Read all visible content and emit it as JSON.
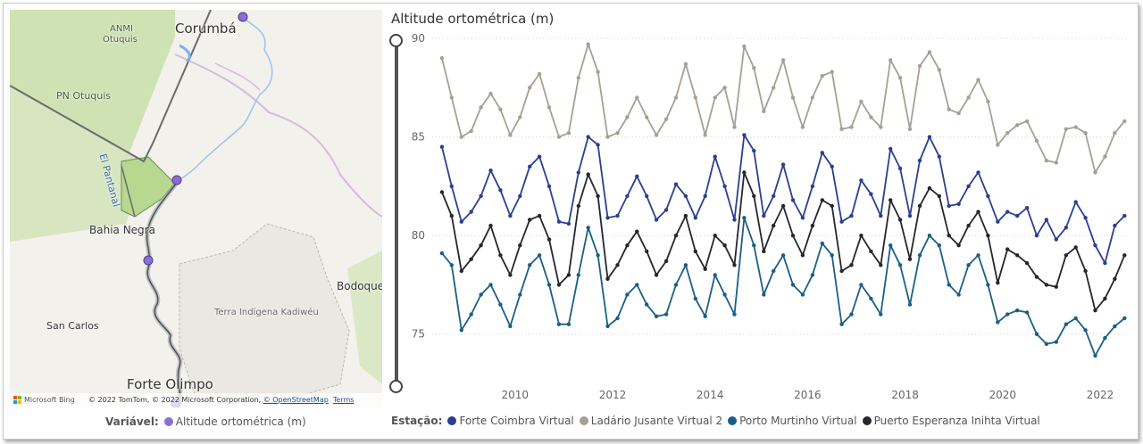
{
  "map": {
    "labels": {
      "corumba": "Corumbá",
      "anmi": "ANMI",
      "otuquis": "Otuquis",
      "pn_otuquis": "PN Otuquis",
      "el_pantanal": "El Pantanal",
      "bahia_negra": "Bahia Negra",
      "bodoquena": "Bodoque",
      "terra_indigena": "Terra Indígena Kadiwéu",
      "san_carlos": "San Carlos",
      "forte_olimpo": "Forte Olimpo"
    },
    "attribution": {
      "bing": "Microsoft Bing",
      "copyright": "© 2022 TomTom, © 2022 Microsoft Corporation, ",
      "osm": "© OpenStreetMap",
      "terms": "Terms"
    },
    "point_color": "#8a6fd1",
    "legend": {
      "title": "Variável:",
      "item": "Altitude ortométrica (m)"
    }
  },
  "chart_title": "Altitude ortométrica (m)",
  "legend_title": "Estação:",
  "chart_data": {
    "type": "line",
    "title": "Altitude ortométrica (m)",
    "xlabel": "",
    "ylabel": "",
    "xlim": [
      2008.3,
      2022.55
    ],
    "ylim": [
      72.5,
      90.5
    ],
    "x_ticks": [
      "2010",
      "2012",
      "2014",
      "2016",
      "2018",
      "2020",
      "2022"
    ],
    "y_ticks": [
      "75",
      "80",
      "85",
      "90"
    ],
    "grid": "horizontal-dotted",
    "legend_position": "bottom",
    "series": [
      {
        "name": "Forte Coimbra Virtual",
        "color": "#2b3f8f",
        "points": [
          [
            2008.5,
            84.5
          ],
          [
            2008.7,
            82.5
          ],
          [
            2008.9,
            80.7
          ],
          [
            2009.1,
            81.2
          ],
          [
            2009.3,
            82.0
          ],
          [
            2009.5,
            83.3
          ],
          [
            2009.7,
            82.3
          ],
          [
            2009.9,
            81.0
          ],
          [
            2010.1,
            82.0
          ],
          [
            2010.3,
            83.5
          ],
          [
            2010.5,
            84.0
          ],
          [
            2010.7,
            82.5
          ],
          [
            2010.9,
            80.7
          ],
          [
            2011.1,
            80.6
          ],
          [
            2011.3,
            83.2
          ],
          [
            2011.5,
            85.0
          ],
          [
            2011.7,
            84.6
          ],
          [
            2011.9,
            80.9
          ],
          [
            2012.1,
            81.0
          ],
          [
            2012.3,
            82.0
          ],
          [
            2012.5,
            83.0
          ],
          [
            2012.7,
            82.0
          ],
          [
            2012.9,
            80.8
          ],
          [
            2013.1,
            81.3
          ],
          [
            2013.3,
            82.6
          ],
          [
            2013.5,
            82.0
          ],
          [
            2013.7,
            80.9
          ],
          [
            2013.9,
            82.0
          ],
          [
            2014.1,
            84.0
          ],
          [
            2014.3,
            82.5
          ],
          [
            2014.5,
            80.8
          ],
          [
            2014.7,
            85.1
          ],
          [
            2014.9,
            84.3
          ],
          [
            2015.1,
            81.0
          ],
          [
            2015.3,
            82.0
          ],
          [
            2015.5,
            83.6
          ],
          [
            2015.7,
            81.8
          ],
          [
            2015.9,
            80.9
          ],
          [
            2016.1,
            82.5
          ],
          [
            2016.3,
            84.2
          ],
          [
            2016.5,
            83.5
          ],
          [
            2016.7,
            80.7
          ],
          [
            2016.9,
            81.0
          ],
          [
            2017.1,
            82.8
          ],
          [
            2017.3,
            82.1
          ],
          [
            2017.5,
            81.0
          ],
          [
            2017.7,
            84.4
          ],
          [
            2017.9,
            83.4
          ],
          [
            2018.1,
            81.0
          ],
          [
            2018.3,
            83.8
          ],
          [
            2018.5,
            85.0
          ],
          [
            2018.7,
            84.0
          ],
          [
            2018.9,
            81.5
          ],
          [
            2019.1,
            81.6
          ],
          [
            2019.3,
            82.5
          ],
          [
            2019.5,
            83.2
          ],
          [
            2019.7,
            82.0
          ],
          [
            2019.9,
            80.7
          ],
          [
            2020.1,
            81.2
          ],
          [
            2020.3,
            81.0
          ],
          [
            2020.5,
            81.4
          ],
          [
            2020.7,
            80.0
          ],
          [
            2020.9,
            80.8
          ],
          [
            2021.1,
            79.8
          ],
          [
            2021.3,
            80.4
          ],
          [
            2021.5,
            81.7
          ],
          [
            2021.7,
            80.9
          ],
          [
            2021.9,
            79.5
          ],
          [
            2022.1,
            78.6
          ],
          [
            2022.3,
            80.5
          ],
          [
            2022.5,
            81.0
          ]
        ]
      },
      {
        "name": "Ladário Jusante Virtual 2",
        "color": "#a89f94",
        "points": [
          [
            2008.5,
            89.0
          ],
          [
            2008.7,
            87.0
          ],
          [
            2008.9,
            85.0
          ],
          [
            2009.1,
            85.3
          ],
          [
            2009.3,
            86.5
          ],
          [
            2009.5,
            87.2
          ],
          [
            2009.7,
            86.4
          ],
          [
            2009.9,
            85.1
          ],
          [
            2010.1,
            86.0
          ],
          [
            2010.3,
            87.5
          ],
          [
            2010.5,
            88.2
          ],
          [
            2010.7,
            86.5
          ],
          [
            2010.9,
            85.0
          ],
          [
            2011.1,
            85.2
          ],
          [
            2011.3,
            88.0
          ],
          [
            2011.5,
            89.7
          ],
          [
            2011.7,
            88.3
          ],
          [
            2011.9,
            85.0
          ],
          [
            2012.1,
            85.2
          ],
          [
            2012.3,
            86.0
          ],
          [
            2012.5,
            87.0
          ],
          [
            2012.7,
            86.0
          ],
          [
            2012.9,
            85.1
          ],
          [
            2013.1,
            85.9
          ],
          [
            2013.3,
            87.0
          ],
          [
            2013.5,
            88.7
          ],
          [
            2013.7,
            87.0
          ],
          [
            2013.9,
            85.1
          ],
          [
            2014.1,
            87.0
          ],
          [
            2014.3,
            87.5
          ],
          [
            2014.5,
            85.5
          ],
          [
            2014.7,
            89.6
          ],
          [
            2014.9,
            88.5
          ],
          [
            2015.1,
            86.3
          ],
          [
            2015.3,
            87.5
          ],
          [
            2015.5,
            88.9
          ],
          [
            2015.7,
            87.0
          ],
          [
            2015.9,
            85.5
          ],
          [
            2016.1,
            87.0
          ],
          [
            2016.3,
            88.1
          ],
          [
            2016.5,
            88.3
          ],
          [
            2016.7,
            85.4
          ],
          [
            2016.9,
            85.5
          ],
          [
            2017.1,
            86.8
          ],
          [
            2017.3,
            86.0
          ],
          [
            2017.5,
            85.5
          ],
          [
            2017.7,
            88.9
          ],
          [
            2017.9,
            88.0
          ],
          [
            2018.1,
            85.4
          ],
          [
            2018.3,
            88.6
          ],
          [
            2018.5,
            89.3
          ],
          [
            2018.7,
            88.4
          ],
          [
            2018.9,
            86.4
          ],
          [
            2019.1,
            86.2
          ],
          [
            2019.3,
            87.0
          ],
          [
            2019.5,
            87.9
          ],
          [
            2019.7,
            86.8
          ],
          [
            2019.9,
            84.6
          ],
          [
            2020.1,
            85.2
          ],
          [
            2020.3,
            85.6
          ],
          [
            2020.5,
            85.8
          ],
          [
            2020.7,
            84.8
          ],
          [
            2020.9,
            83.8
          ],
          [
            2021.1,
            83.7
          ],
          [
            2021.3,
            85.4
          ],
          [
            2021.5,
            85.5
          ],
          [
            2021.7,
            85.2
          ],
          [
            2021.9,
            83.2
          ],
          [
            2022.1,
            84.0
          ],
          [
            2022.3,
            85.2
          ],
          [
            2022.5,
            85.8
          ]
        ]
      },
      {
        "name": "Porto Murtinho Virtual",
        "color": "#1b5e86",
        "points": [
          [
            2008.5,
            79.1
          ],
          [
            2008.7,
            78.5
          ],
          [
            2008.9,
            75.2
          ],
          [
            2009.1,
            76.0
          ],
          [
            2009.3,
            77.0
          ],
          [
            2009.5,
            77.5
          ],
          [
            2009.7,
            76.5
          ],
          [
            2009.9,
            75.4
          ],
          [
            2010.1,
            77.0
          ],
          [
            2010.3,
            78.5
          ],
          [
            2010.5,
            79.0
          ],
          [
            2010.7,
            77.5
          ],
          [
            2010.9,
            75.5
          ],
          [
            2011.1,
            75.5
          ],
          [
            2011.3,
            78.0
          ],
          [
            2011.5,
            80.4
          ],
          [
            2011.7,
            79.0
          ],
          [
            2011.9,
            75.4
          ],
          [
            2012.1,
            75.8
          ],
          [
            2012.3,
            77.0
          ],
          [
            2012.5,
            77.5
          ],
          [
            2012.7,
            76.5
          ],
          [
            2012.9,
            75.9
          ],
          [
            2013.1,
            76.0
          ],
          [
            2013.3,
            77.5
          ],
          [
            2013.5,
            78.5
          ],
          [
            2013.7,
            76.8
          ],
          [
            2013.9,
            75.9
          ],
          [
            2014.1,
            78.0
          ],
          [
            2014.3,
            77.0
          ],
          [
            2014.5,
            76.0
          ],
          [
            2014.7,
            80.9
          ],
          [
            2014.9,
            79.5
          ],
          [
            2015.1,
            77.0
          ],
          [
            2015.3,
            78.2
          ],
          [
            2015.5,
            79.0
          ],
          [
            2015.7,
            77.5
          ],
          [
            2015.9,
            77.0
          ],
          [
            2016.1,
            78.0
          ],
          [
            2016.3,
            79.6
          ],
          [
            2016.5,
            79.0
          ],
          [
            2016.7,
            75.5
          ],
          [
            2016.9,
            76.0
          ],
          [
            2017.1,
            77.5
          ],
          [
            2017.3,
            76.8
          ],
          [
            2017.5,
            76.0
          ],
          [
            2017.7,
            79.5
          ],
          [
            2017.9,
            78.5
          ],
          [
            2018.1,
            76.5
          ],
          [
            2018.3,
            79.0
          ],
          [
            2018.5,
            80.0
          ],
          [
            2018.7,
            79.5
          ],
          [
            2018.9,
            77.5
          ],
          [
            2019.1,
            77.0
          ],
          [
            2019.3,
            78.5
          ],
          [
            2019.5,
            79.0
          ],
          [
            2019.7,
            77.5
          ],
          [
            2019.9,
            75.6
          ],
          [
            2020.1,
            76.0
          ],
          [
            2020.3,
            76.2
          ],
          [
            2020.5,
            76.1
          ],
          [
            2020.7,
            75.0
          ],
          [
            2020.9,
            74.5
          ],
          [
            2021.1,
            74.6
          ],
          [
            2021.3,
            75.5
          ],
          [
            2021.5,
            75.8
          ],
          [
            2021.7,
            75.2
          ],
          [
            2021.9,
            73.9
          ],
          [
            2022.1,
            74.8
          ],
          [
            2022.3,
            75.4
          ],
          [
            2022.5,
            75.8
          ]
        ]
      },
      {
        "name": "Puerto Esperanza Inihta Virtual",
        "color": "#25272e",
        "points": [
          [
            2008.5,
            82.2
          ],
          [
            2008.7,
            81.0
          ],
          [
            2008.9,
            78.2
          ],
          [
            2009.1,
            78.8
          ],
          [
            2009.3,
            79.5
          ],
          [
            2009.5,
            80.5
          ],
          [
            2009.7,
            79.0
          ],
          [
            2009.9,
            78.0
          ],
          [
            2010.1,
            79.5
          ],
          [
            2010.3,
            80.8
          ],
          [
            2010.5,
            81.0
          ],
          [
            2010.7,
            79.8
          ],
          [
            2010.9,
            77.5
          ],
          [
            2011.1,
            78.0
          ],
          [
            2011.3,
            81.5
          ],
          [
            2011.5,
            83.1
          ],
          [
            2011.7,
            82.0
          ],
          [
            2011.9,
            77.8
          ],
          [
            2012.1,
            78.5
          ],
          [
            2012.3,
            79.5
          ],
          [
            2012.5,
            80.2
          ],
          [
            2012.7,
            79.2
          ],
          [
            2012.9,
            78.0
          ],
          [
            2013.1,
            78.7
          ],
          [
            2013.3,
            80.0
          ],
          [
            2013.5,
            81.0
          ],
          [
            2013.7,
            79.2
          ],
          [
            2013.9,
            78.3
          ],
          [
            2014.1,
            80.0
          ],
          [
            2014.3,
            79.5
          ],
          [
            2014.5,
            78.5
          ],
          [
            2014.7,
            83.2
          ],
          [
            2014.9,
            82.0
          ],
          [
            2015.1,
            79.2
          ],
          [
            2015.3,
            80.5
          ],
          [
            2015.5,
            81.5
          ],
          [
            2015.7,
            80.0
          ],
          [
            2015.9,
            79.0
          ],
          [
            2016.1,
            80.5
          ],
          [
            2016.3,
            81.8
          ],
          [
            2016.5,
            81.5
          ],
          [
            2016.7,
            78.2
          ],
          [
            2016.9,
            78.5
          ],
          [
            2017.1,
            80.0
          ],
          [
            2017.3,
            79.2
          ],
          [
            2017.5,
            78.5
          ],
          [
            2017.7,
            81.8
          ],
          [
            2017.9,
            80.8
          ],
          [
            2018.1,
            78.8
          ],
          [
            2018.3,
            81.5
          ],
          [
            2018.5,
            82.4
          ],
          [
            2018.7,
            82.0
          ],
          [
            2018.9,
            80.0
          ],
          [
            2019.1,
            79.5
          ],
          [
            2019.3,
            80.5
          ],
          [
            2019.5,
            81.2
          ],
          [
            2019.7,
            80.0
          ],
          [
            2019.9,
            77.6
          ],
          [
            2020.1,
            79.3
          ],
          [
            2020.3,
            79.0
          ],
          [
            2020.5,
            78.6
          ],
          [
            2020.7,
            77.9
          ],
          [
            2020.9,
            77.5
          ],
          [
            2021.1,
            77.4
          ],
          [
            2021.3,
            79.0
          ],
          [
            2021.5,
            79.4
          ],
          [
            2021.7,
            78.2
          ],
          [
            2021.9,
            76.2
          ],
          [
            2022.1,
            76.8
          ],
          [
            2022.3,
            77.8
          ],
          [
            2022.5,
            79.0
          ]
        ]
      }
    ]
  }
}
